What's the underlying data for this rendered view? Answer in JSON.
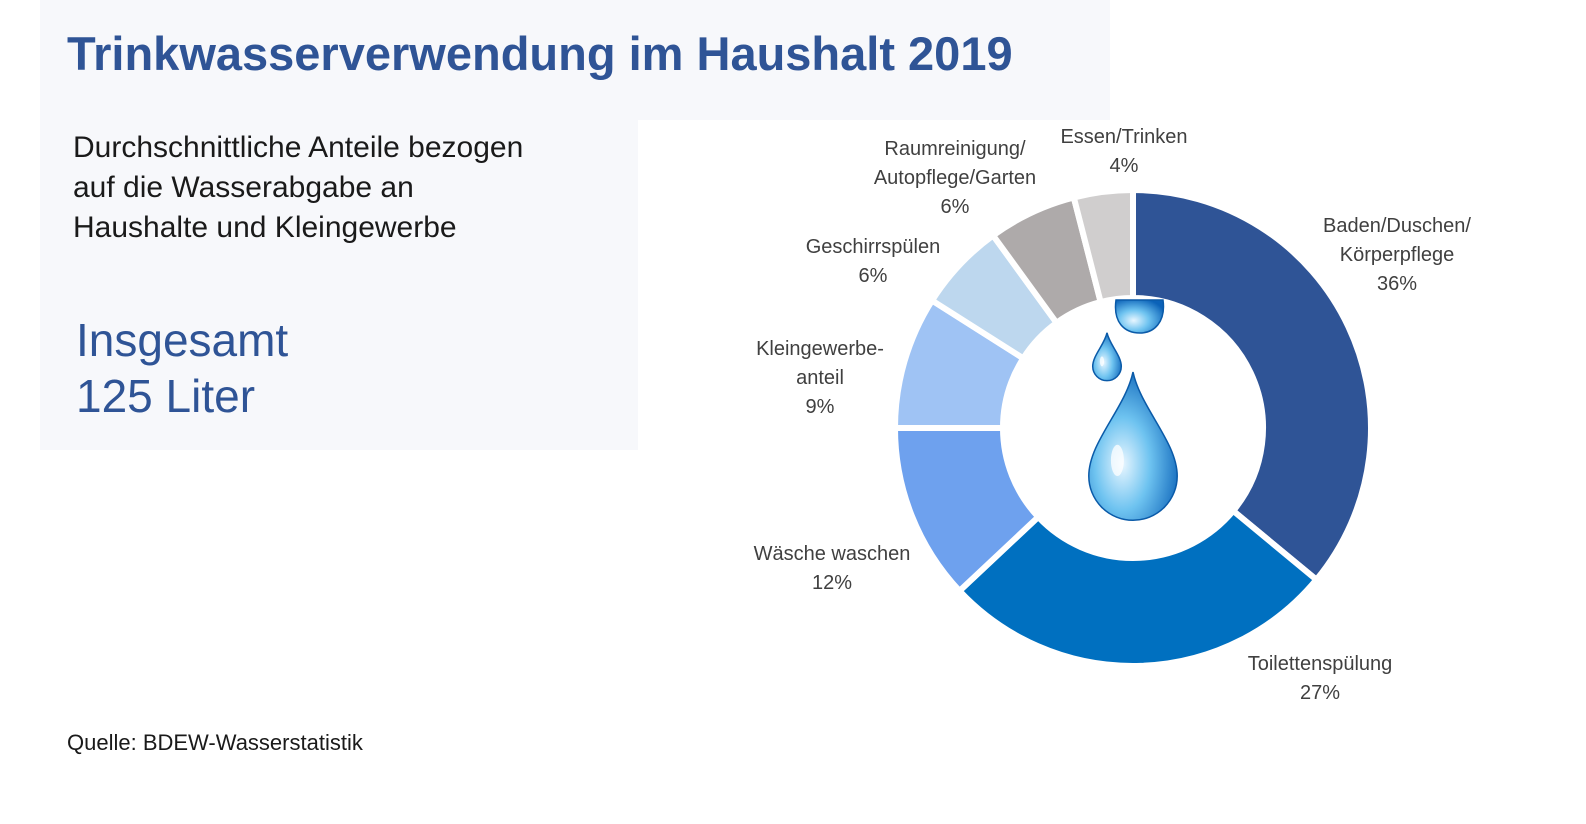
{
  "title": "Trinkwasserverwendung im Haushalt 2019",
  "subtitle": [
    "Durchschnittliche Anteile bezogen",
    "auf die Wasserabgabe an",
    "Haushalte und Kleingewerbe"
  ],
  "total": [
    "Insgesamt",
    "125 Liter"
  ],
  "source": "Quelle: BDEW-Wasserstatistik",
  "icons": [
    "water-drop-icon"
  ],
  "chart_data": {
    "type": "pie",
    "variant": "donut",
    "start": "top, clockwise",
    "legend": "none",
    "segments": [
      {
        "label": [
          "Baden/Duschen/",
          "Körperpflege"
        ],
        "value": 36,
        "value_label": "36%",
        "color": "#2f5496"
      },
      {
        "label": [
          "Toilettenspülung"
        ],
        "value": 27,
        "value_label": "27%",
        "color": "#0070c0"
      },
      {
        "label": [
          "Wäsche waschen"
        ],
        "value": 12,
        "value_label": "12%",
        "color": "#6ea1ee"
      },
      {
        "label": [
          "Kleingewerbe-",
          "anteil"
        ],
        "value": 9,
        "value_label": "9%",
        "color": "#9fc3f4"
      },
      {
        "label": [
          "Geschirrspülen"
        ],
        "value": 6,
        "value_label": "6%",
        "color": "#bdd7ee"
      },
      {
        "label": [
          "Raumreinigung/",
          "Autopflege/Garten"
        ],
        "value": 6,
        "value_label": "6%",
        "color": "#aeaaaa"
      },
      {
        "label": [
          "Essen/Trinken"
        ],
        "value": 4,
        "value_label": "4%",
        "color": "#d0cece"
      }
    ]
  }
}
